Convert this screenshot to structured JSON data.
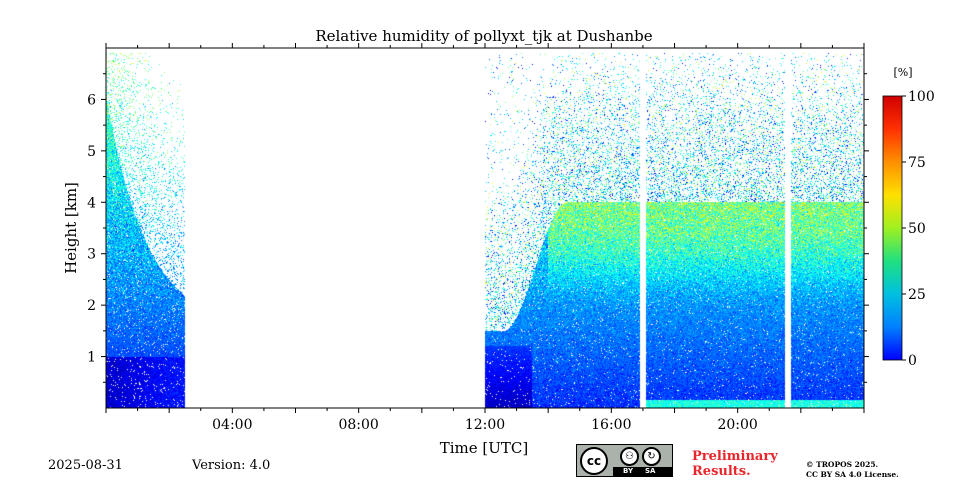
{
  "chart_data": {
    "type": "heatmap",
    "title": "Relative humidity of pollyxt_tjk at Dushanbe",
    "xlabel": "Time [UTC]",
    "ylabel": "Height [km]",
    "xlim": [
      0,
      24
    ],
    "ylim": [
      0,
      7
    ],
    "x_ticks": [
      {
        "value": 4,
        "label": "04:00"
      },
      {
        "value": 8,
        "label": "08:00"
      },
      {
        "value": 12,
        "label": "12:00"
      },
      {
        "value": 16,
        "label": "16:00"
      },
      {
        "value": 20,
        "label": "20:00"
      }
    ],
    "y_ticks": [
      {
        "value": 1,
        "label": "1"
      },
      {
        "value": 2,
        "label": "2"
      },
      {
        "value": 3,
        "label": "3"
      },
      {
        "value": 4,
        "label": "4"
      },
      {
        "value": 5,
        "label": "5"
      },
      {
        "value": 6,
        "label": "6"
      }
    ],
    "colorbar": {
      "unit": "[%]",
      "range": [
        0,
        100
      ],
      "ticks": [
        {
          "value": 0,
          "label": "0"
        },
        {
          "value": 25,
          "label": "25"
        },
        {
          "value": 50,
          "label": "50"
        },
        {
          "value": 75,
          "label": "75"
        },
        {
          "value": 100,
          "label": "100"
        }
      ],
      "colormap": "jet"
    },
    "data_segments": [
      {
        "start": 0.0,
        "end": 2.5,
        "top": 6.9
      },
      {
        "start": 12.0,
        "end": 24.0,
        "top": 6.9
      }
    ],
    "profile_gaps": [
      17.0,
      21.6
    ],
    "humid_layer": {
      "start": 14.0,
      "end": 24.0,
      "bottom": 1.9,
      "top": 4.0
    }
  },
  "footer": {
    "date": "2025-08-31",
    "version": "Version: 4.0",
    "license_badge": {
      "main": "cc",
      "by": "BY",
      "sa": "SA"
    },
    "preliminary": [
      "Preliminary",
      "Results."
    ],
    "copyright": [
      "© TROPOS 2025.",
      "CC BY SA 4.0 License."
    ]
  },
  "colors": {
    "preliminary": "#e8262b",
    "badge_background": "#aab2ab"
  }
}
